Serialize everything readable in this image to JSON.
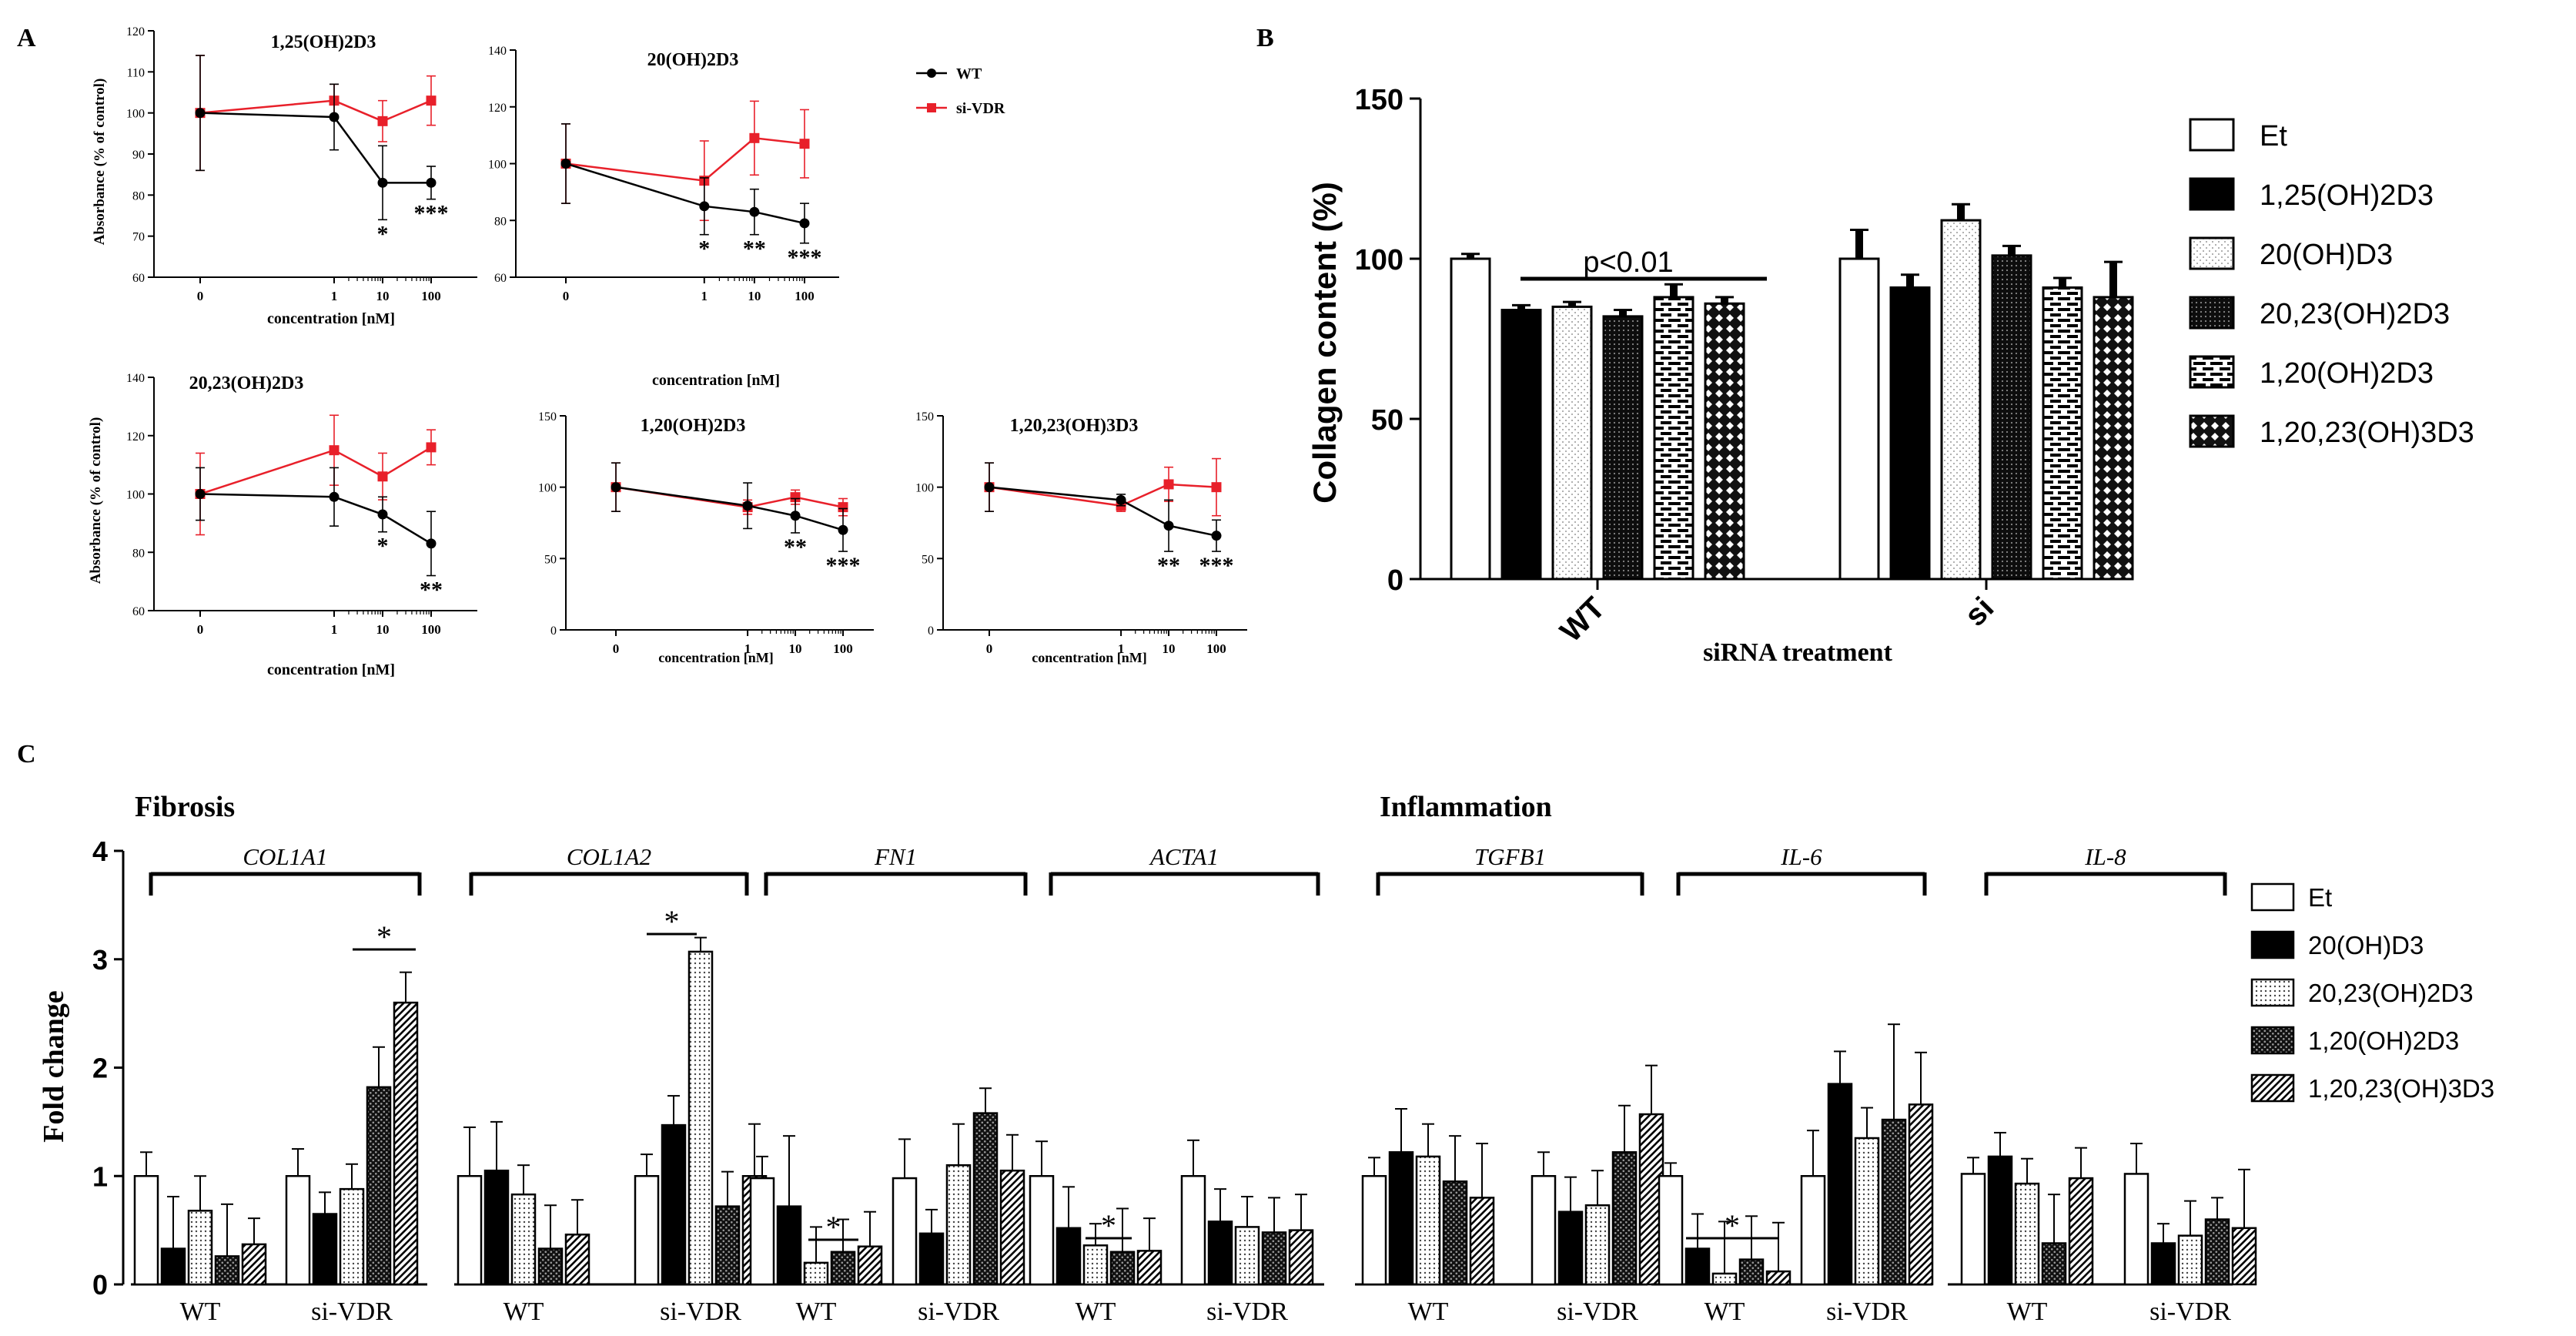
{
  "panel_letters": {
    "a": "A",
    "b": "B",
    "c": "C"
  },
  "colors": {
    "wt": "#000000",
    "si": "#e8202a"
  },
  "legend_a": {
    "wt": "WT",
    "si": "si-VDR"
  },
  "chart_data": [
    {
      "id": "A1",
      "type": "line",
      "title": "1,25(OH)2D3",
      "ylabel": "Absorbance (% of control)",
      "xlabel": "concentration [nM]",
      "ylim": [
        60,
        120
      ],
      "yticks": [
        60,
        70,
        80,
        90,
        100,
        110,
        120
      ],
      "x": [
        0,
        1,
        10,
        100
      ],
      "xticks": [
        "0",
        "1",
        "10",
        "100"
      ],
      "series": [
        {
          "name": "WT",
          "values": [
            100,
            99,
            83,
            83
          ],
          "errors": [
            14,
            8,
            9,
            4
          ]
        },
        {
          "name": "si-VDR",
          "values": [
            100,
            103,
            98,
            103
          ],
          "errors": [
            14,
            4,
            5,
            6
          ]
        }
      ],
      "annotations": [
        {
          "x": 10,
          "text": "*"
        },
        {
          "x": 100,
          "text": "***"
        }
      ]
    },
    {
      "id": "A2",
      "type": "line",
      "title": "20(OH)2D3",
      "xlabel": "concentration [nM]",
      "ylim": [
        60,
        140
      ],
      "yticks": [
        60,
        80,
        100,
        120,
        140
      ],
      "x": [
        0,
        1,
        10,
        100
      ],
      "xticks": [
        "0",
        "1",
        "10",
        "100"
      ],
      "series": [
        {
          "name": "WT",
          "values": [
            100,
            85,
            83,
            79
          ],
          "errors": [
            14,
            10,
            8,
            7
          ]
        },
        {
          "name": "si-VDR",
          "values": [
            100,
            94,
            109,
            107
          ],
          "errors": [
            14,
            14,
            13,
            12
          ]
        }
      ],
      "annotations": [
        {
          "x": 1,
          "text": "*"
        },
        {
          "x": 10,
          "text": "**"
        },
        {
          "x": 100,
          "text": "***"
        }
      ]
    },
    {
      "id": "A3",
      "type": "line",
      "title": "20,23(OH)2D3",
      "ylabel": "Absorbance (% of control)",
      "xlabel": "concentration [nM]",
      "ylim": [
        60,
        140
      ],
      "yticks": [
        60,
        80,
        100,
        120,
        140
      ],
      "x": [
        0,
        1,
        10,
        100
      ],
      "xticks": [
        "0",
        "1",
        "10",
        "100"
      ],
      "series": [
        {
          "name": "WT",
          "values": [
            100,
            99,
            93,
            83
          ],
          "errors": [
            9,
            10,
            6,
            11
          ]
        },
        {
          "name": "si-VDR",
          "values": [
            100,
            115,
            106,
            116
          ],
          "errors": [
            14,
            12,
            8,
            6
          ]
        }
      ],
      "annotations": [
        {
          "x": 10,
          "text": "*"
        },
        {
          "x": 100,
          "text": "**"
        }
      ]
    },
    {
      "id": "A4",
      "type": "line",
      "title": "1,20(OH)2D3",
      "xlabel": "concentration [nM]",
      "ylim": [
        0,
        150
      ],
      "yticks": [
        0,
        50,
        100,
        150
      ],
      "x": [
        0,
        1,
        10,
        100
      ],
      "xticks": [
        "0",
        "1",
        "10",
        "100"
      ],
      "series": [
        {
          "name": "WT",
          "values": [
            100,
            87,
            80,
            70
          ],
          "errors": [
            17,
            16,
            12,
            15
          ]
        },
        {
          "name": "si-VDR",
          "values": [
            100,
            86,
            93,
            86
          ],
          "errors": [
            17,
            5,
            5,
            6
          ]
        }
      ],
      "annotations": [
        {
          "x": 10,
          "text": "**"
        },
        {
          "x": 100,
          "text": "***"
        }
      ]
    },
    {
      "id": "A5",
      "type": "line",
      "title": "1,20,23(OH)3D3",
      "xlabel": "concentration [nM]",
      "ylim": [
        0,
        150
      ],
      "yticks": [
        0,
        50,
        100,
        150
      ],
      "x": [
        0,
        1,
        10,
        100
      ],
      "xticks": [
        "0",
        "1",
        "10",
        "100"
      ],
      "series": [
        {
          "name": "WT",
          "values": [
            100,
            91,
            73,
            66
          ],
          "errors": [
            17,
            4,
            18,
            11
          ]
        },
        {
          "name": "si-VDR",
          "values": [
            100,
            87,
            102,
            100
          ],
          "errors": [
            17,
            4,
            12,
            20
          ]
        }
      ],
      "annotations": [
        {
          "x": 10,
          "text": "**"
        },
        {
          "x": 100,
          "text": "***"
        }
      ]
    },
    {
      "id": "B",
      "type": "bar",
      "ylabel": "Collagen content (%)",
      "xlabel": "siRNA treatment",
      "ylim": [
        0,
        150
      ],
      "yticks": [
        0,
        50,
        100,
        150
      ],
      "categories": [
        "WT",
        "si"
      ],
      "series": [
        {
          "name": "Et",
          "values": [
            100,
            100
          ],
          "errors": [
            1.5,
            9
          ]
        },
        {
          "name": "1,25(OH)2D3",
          "values": [
            84,
            91
          ],
          "errors": [
            1.5,
            4
          ]
        },
        {
          "name": "20(OH)D3",
          "values": [
            85,
            112
          ],
          "errors": [
            1.5,
            5
          ]
        },
        {
          "name": "20,23(OH)2D3",
          "values": [
            82,
            101
          ],
          "errors": [
            2,
            3
          ]
        },
        {
          "name": "1,20(OH)2D3",
          "values": [
            88,
            91
          ],
          "errors": [
            4,
            3
          ]
        },
        {
          "name": "1,20,23(OH)3D3",
          "values": [
            86,
            88
          ],
          "errors": [
            2,
            11
          ]
        }
      ],
      "annotations": [
        {
          "text": "p<0.01"
        }
      ]
    },
    {
      "id": "C",
      "type": "bar",
      "ylabel": "Fold change",
      "ylim": [
        0,
        4
      ],
      "yticks": [
        0,
        1,
        2,
        3,
        4
      ],
      "section_labels": [
        "Fibrosis",
        "Inflammation"
      ],
      "legend": [
        "Et",
        "20(OH)D3",
        "20,23(OH)2D3",
        "1,20(OH)2D3",
        "1,20,23(OH)3D3"
      ],
      "genes": [
        {
          "name": "COL1A1",
          "groups": [
            {
              "label": "WT",
              "values": [
                1.0,
                0.33,
                0.68,
                0.26,
                0.37
              ],
              "errors": [
                0.22,
                0.48,
                0.32,
                0.48,
                0.24
              ]
            },
            {
              "label": "si-VDR",
              "values": [
                1.0,
                0.65,
                0.88,
                1.82,
                2.6
              ],
              "errors": [
                0.25,
                0.2,
                0.23,
                0.37,
                0.28
              ]
            }
          ],
          "stars": [
            "*"
          ]
        },
        {
          "name": "COL1A2",
          "groups": [
            {
              "label": "WT",
              "values": [
                1.0,
                1.05,
                0.83,
                0.33,
                0.46
              ],
              "errors": [
                0.45,
                0.45,
                0.27,
                0.4,
                0.32
              ]
            },
            {
              "label": "si-VDR",
              "values": [
                1.0,
                1.47,
                3.07,
                0.72,
                1.0
              ],
              "errors": [
                0.2,
                0.27,
                0.13,
                0.32,
                0.48
              ]
            }
          ],
          "stars": [
            "*"
          ]
        },
        {
          "name": "FN1",
          "groups": [
            {
              "label": "WT",
              "values": [
                0.98,
                0.72,
                0.2,
                0.3,
                0.35
              ],
              "errors": [
                0.2,
                0.65,
                0.33,
                0.3,
                0.32
              ]
            },
            {
              "label": "si-VDR",
              "values": [
                0.98,
                0.47,
                1.1,
                1.58,
                1.05
              ],
              "errors": [
                0.36,
                0.22,
                0.38,
                0.23,
                0.33
              ]
            }
          ],
          "stars": [
            "*"
          ]
        },
        {
          "name": "ACTA1",
          "groups": [
            {
              "label": "WT",
              "values": [
                1.0,
                0.52,
                0.36,
                0.3,
                0.31
              ],
              "errors": [
                0.32,
                0.38,
                0.2,
                0.4,
                0.3
              ]
            },
            {
              "label": "si-VDR",
              "values": [
                1.0,
                0.58,
                0.53,
                0.48,
                0.5
              ],
              "errors": [
                0.33,
                0.3,
                0.28,
                0.32,
                0.33
              ]
            }
          ],
          "stars": [
            "*"
          ]
        },
        {
          "name": "TGFB1",
          "groups": [
            {
              "label": "WT",
              "values": [
                1.0,
                1.22,
                1.18,
                0.95,
                0.8
              ],
              "errors": [
                0.17,
                0.4,
                0.3,
                0.42,
                0.5
              ]
            },
            {
              "label": "si-VDR",
              "values": [
                1.0,
                0.67,
                0.73,
                1.22,
                1.57
              ],
              "errors": [
                0.22,
                0.32,
                0.32,
                0.43,
                0.45
              ]
            }
          ],
          "stars": []
        },
        {
          "name": "IL-6",
          "groups": [
            {
              "label": "WT",
              "values": [
                1.0,
                0.33,
                0.1,
                0.23,
                0.12
              ],
              "errors": [
                0.12,
                0.32,
                0.48,
                0.4,
                0.45
              ]
            },
            {
              "label": "si-VDR",
              "values": [
                1.0,
                1.85,
                1.35,
                1.52,
                1.66
              ],
              "errors": [
                0.42,
                0.3,
                0.28,
                0.88,
                0.48
              ]
            }
          ],
          "stars": [
            "*"
          ]
        },
        {
          "name": "IL-8",
          "groups": [
            {
              "label": "WT",
              "values": [
                1.02,
                1.18,
                0.93,
                0.38,
                0.98
              ],
              "errors": [
                0.15,
                0.22,
                0.23,
                0.45,
                0.28
              ]
            },
            {
              "label": "si-VDR",
              "values": [
                1.02,
                0.38,
                0.45,
                0.6,
                0.52
              ],
              "errors": [
                0.28,
                0.18,
                0.32,
                0.2,
                0.54
              ]
            }
          ],
          "stars": []
        }
      ]
    }
  ]
}
